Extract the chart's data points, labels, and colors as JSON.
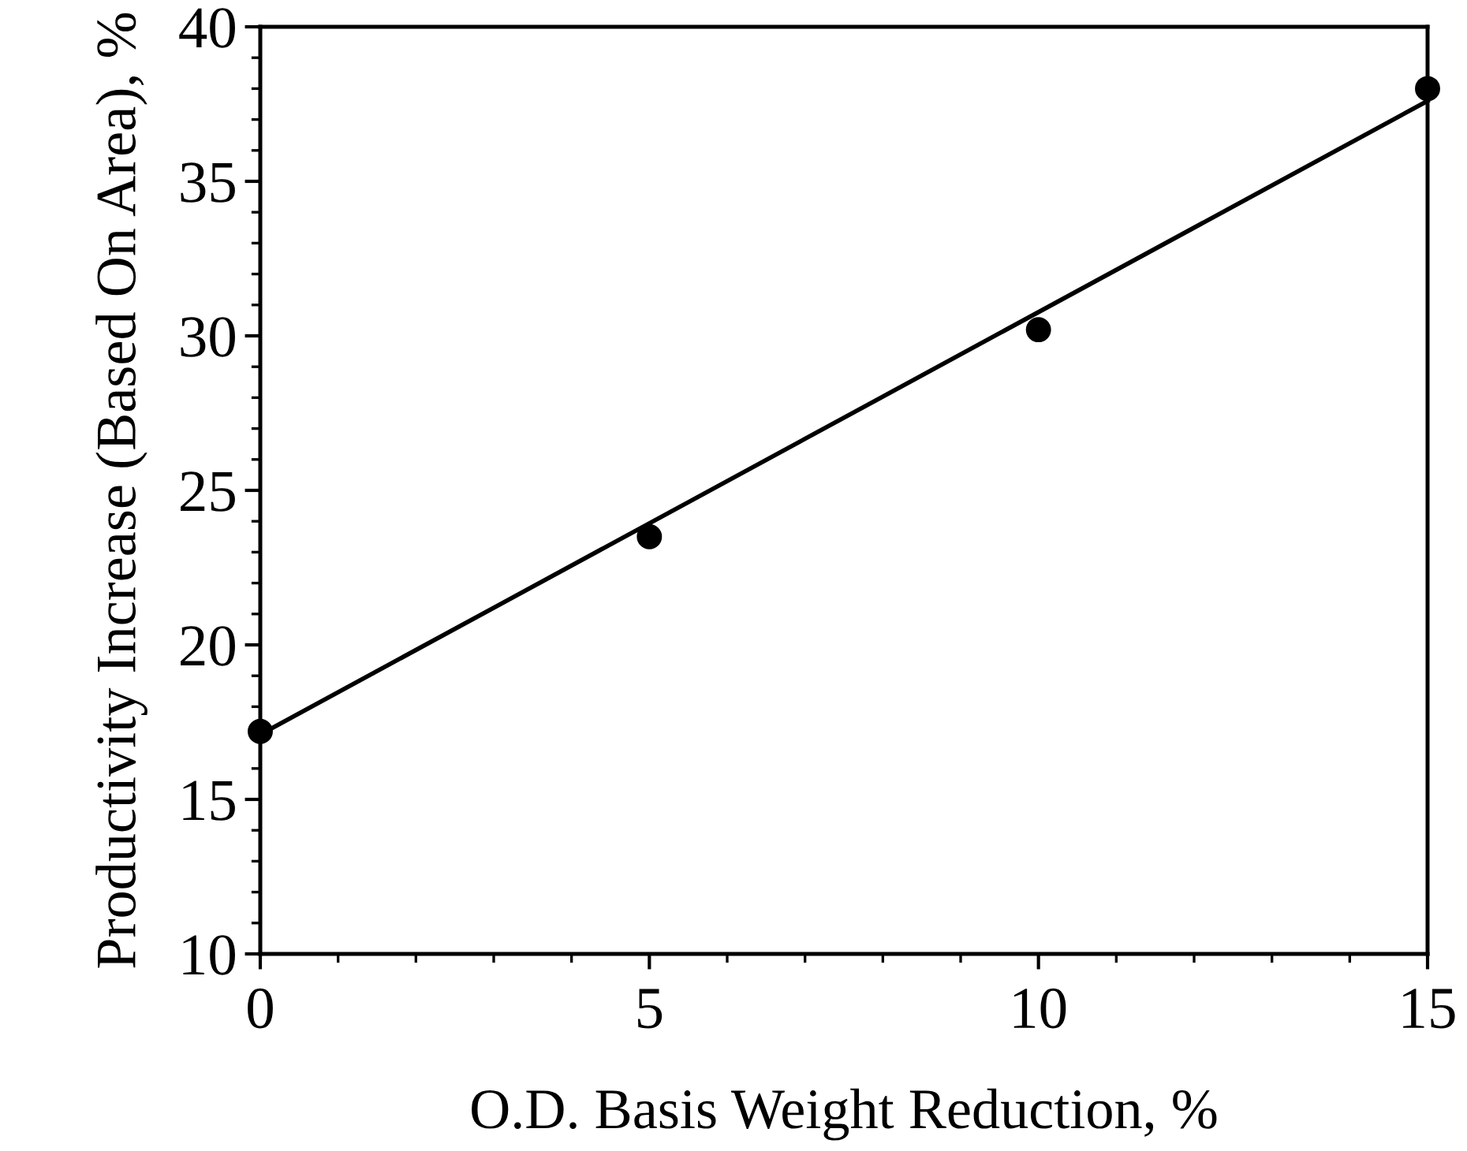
{
  "chart_data": {
    "type": "scatter",
    "xlabel": "O.D. Basis Weight Reduction, %",
    "ylabel": "Productivity Increase (Based On Area), %",
    "series": [
      {
        "color": "#000000",
        "x": [
          0,
          5,
          10,
          15
        ],
        "values": [
          17.2,
          23.5,
          30.2,
          38.0
        ],
        "marker": "circle"
      },
      {
        "type": "line",
        "color": "#000000",
        "x": [
          0,
          15
        ],
        "values": [
          17.1,
          37.6
        ],
        "marker": "none",
        "line_style": "solid"
      }
    ],
    "xlim": [
      0,
      15
    ],
    "ylim": [
      10,
      40
    ],
    "xticks": [
      0,
      {
        "value": 1,
        "label": null
      },
      {
        "value": 2,
        "label": null
      },
      {
        "value": 3,
        "label": null
      },
      {
        "value": 4,
        "label": null
      },
      5,
      {
        "value": 6,
        "label": null
      },
      {
        "value": 7,
        "label": null
      },
      {
        "value": 8,
        "label": null
      },
      {
        "value": 9,
        "label": null
      },
      10,
      {
        "value": 11,
        "label": null
      },
      {
        "value": 12,
        "label": null
      },
      {
        "value": 13,
        "label": null
      },
      {
        "value": 14,
        "label": null
      },
      15
    ],
    "yticks": [
      10,
      {
        "value": 11,
        "label": null
      },
      {
        "value": 12,
        "label": null
      },
      {
        "value": 13,
        "label": null
      },
      {
        "value": 14,
        "label": null
      },
      15,
      {
        "value": 16,
        "label": null
      },
      {
        "value": 17,
        "label": null
      },
      {
        "value": 18,
        "label": null
      },
      {
        "value": 19,
        "label": null
      },
      20,
      {
        "value": 21,
        "label": null
      },
      {
        "value": 22,
        "label": null
      },
      {
        "value": 23,
        "label": null
      },
      {
        "value": 24,
        "label": null
      },
      25,
      {
        "value": 26,
        "label": null
      },
      {
        "value": 27,
        "label": null
      },
      {
        "value": 28,
        "label": null
      },
      {
        "value": 29,
        "label": null
      },
      30,
      {
        "value": 31,
        "label": null
      },
      {
        "value": 32,
        "label": null
      },
      {
        "value": 33,
        "label": null
      },
      {
        "value": 34,
        "label": null
      },
      35,
      {
        "value": 36,
        "label": null
      },
      {
        "value": 37,
        "label": null
      },
      {
        "value": 38,
        "label": null
      },
      {
        "value": 39,
        "label": null
      },
      40
    ],
    "grid": false,
    "legend": false
  }
}
